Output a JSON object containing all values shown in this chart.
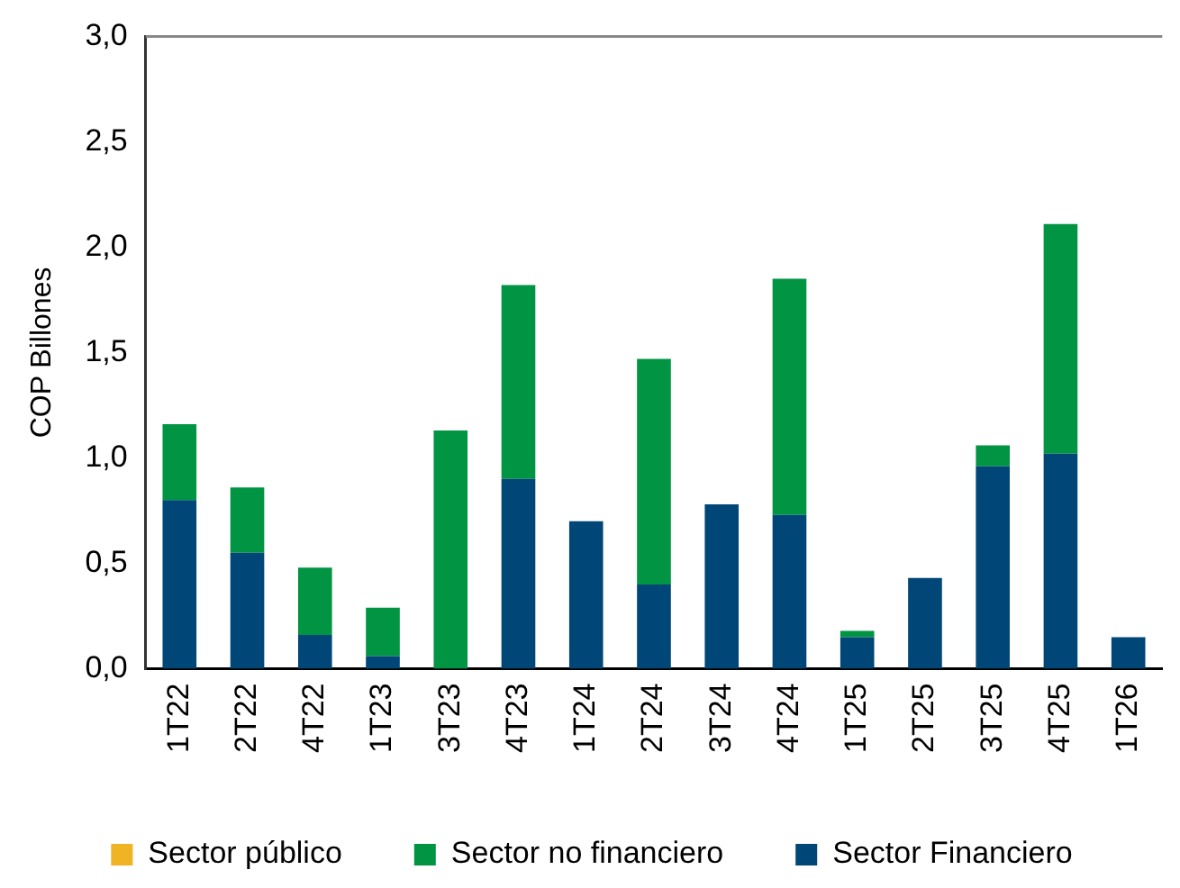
{
  "chart_data": {
    "type": "bar",
    "stacked": true,
    "ylabel": "COP Billones",
    "categories": [
      "1T22",
      "2T22",
      "4T22",
      "1T23",
      "3T23",
      "4T23",
      "1T24",
      "2T24",
      "3T24",
      "4T24",
      "1T25",
      "2T25",
      "3T25",
      "4T25",
      "1T26"
    ],
    "series": [
      {
        "name": "Sector Financiero",
        "color": "#004677",
        "values": [
          0.8,
          0.55,
          0.16,
          0.06,
          0,
          0.9,
          0.7,
          0.4,
          0.78,
          0.73,
          0.15,
          0.43,
          0.96,
          1.02,
          0.15
        ]
      },
      {
        "name": "Sector no financiero",
        "color": "#009443",
        "values": [
          0.36,
          0.31,
          0.32,
          0.23,
          1.13,
          0.92,
          0,
          1.07,
          0,
          1.12,
          0.03,
          0,
          0.1,
          1.09,
          0
        ]
      },
      {
        "name": "Sector público",
        "color": "#f0b323",
        "values": [
          0,
          0,
          0,
          0,
          0,
          0,
          0,
          0,
          0,
          0,
          0,
          0,
          0,
          0,
          0
        ]
      }
    ],
    "ylim": [
      0,
      3
    ],
    "yticks": [
      {
        "value": 0,
        "label": "0,0"
      },
      {
        "value": 0.5,
        "label": "0,5"
      },
      {
        "value": 1,
        "label": "1,0"
      },
      {
        "value": 1.5,
        "label": "1,5"
      },
      {
        "value": 2,
        "label": "2,0"
      },
      {
        "value": 2.5,
        "label": "2,5"
      },
      {
        "value": 3,
        "label": "3,0"
      }
    ],
    "grid": false,
    "legend": "bottom"
  }
}
